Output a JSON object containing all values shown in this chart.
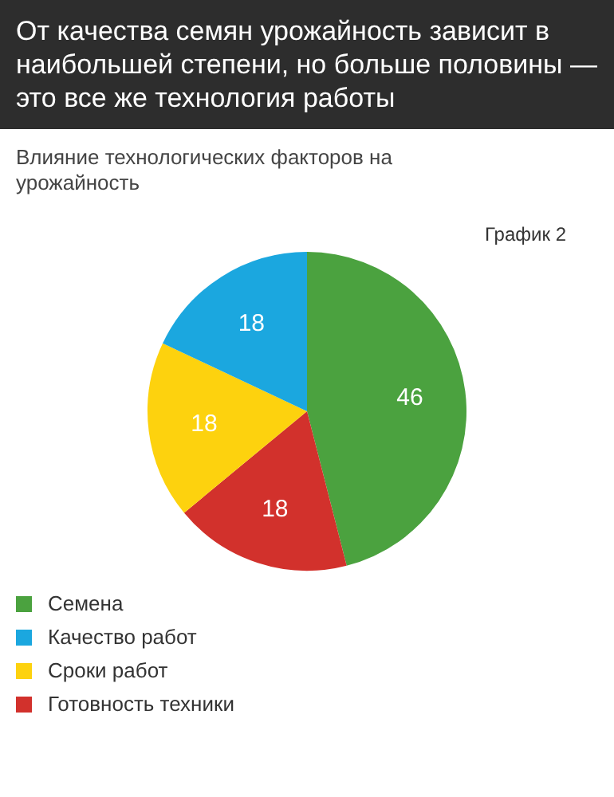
{
  "chart_data": {
    "type": "pie",
    "title": "От качества семян урожайность зависит в наибольшей степени, но больше половины — это все же технология работы",
    "subtitle": "Влияние технологических факторов на урожайность",
    "annotations": [
      "График 2"
    ],
    "categories": [
      "Семена",
      "Качество работ",
      "Сроки работ",
      "Готовность техники"
    ],
    "values": [
      46,
      18,
      18,
      18
    ],
    "colors": [
      "#4ba23f",
      "#1ba7df",
      "#fdd20e",
      "#d2312c"
    ],
    "data_labels": true,
    "legend": "bottom"
  }
}
